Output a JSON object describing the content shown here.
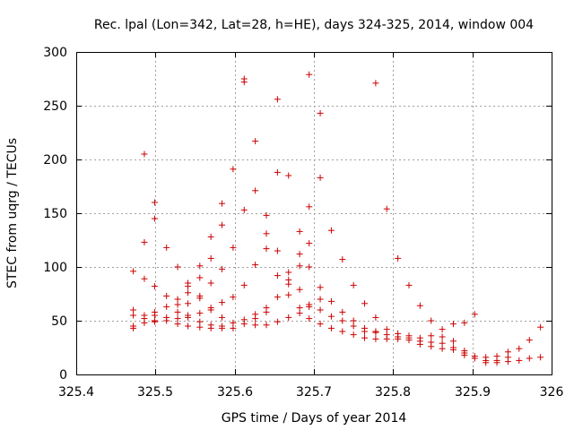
{
  "chart_data": {
    "type": "scatter",
    "title": "Rec. lpal (Lon=342, Lat=28, h=HE), days 324-325, 2014, window 004",
    "xlabel": "GPS time / Days of year 2014",
    "ylabel": "STEC from uqrg / TECUs",
    "xlim": [
      325.4,
      326
    ],
    "ylim": [
      0,
      300
    ],
    "xticks": [
      325.4,
      325.5,
      325.6,
      325.7,
      325.8,
      325.9,
      326
    ],
    "xtick_labels": [
      "325.4",
      "325.5",
      "325.6",
      "325.7",
      "325.8",
      "325.9",
      "326"
    ],
    "yticks": [
      0,
      50,
      100,
      150,
      200,
      250,
      300
    ],
    "ytick_labels": [
      "0",
      "50",
      "100",
      "150",
      "200",
      "250",
      "300"
    ],
    "grid": true,
    "marker": "+",
    "color": "#cc0000",
    "series": [
      {
        "name": "STEC",
        "points": [
          [
            325.472,
            96
          ],
          [
            325.472,
            60
          ],
          [
            325.472,
            55
          ],
          [
            325.472,
            45
          ],
          [
            325.472,
            43
          ],
          [
            325.486,
            205
          ],
          [
            325.486,
            123
          ],
          [
            325.486,
            89
          ],
          [
            325.486,
            55
          ],
          [
            325.486,
            52
          ],
          [
            325.486,
            48
          ],
          [
            325.499,
            160
          ],
          [
            325.499,
            145
          ],
          [
            325.499,
            82
          ],
          [
            325.499,
            58
          ],
          [
            325.499,
            55
          ],
          [
            325.499,
            50
          ],
          [
            325.499,
            49
          ],
          [
            325.514,
            118
          ],
          [
            325.514,
            73
          ],
          [
            325.514,
            63
          ],
          [
            325.514,
            53
          ],
          [
            325.514,
            50
          ],
          [
            325.528,
            100
          ],
          [
            325.528,
            70
          ],
          [
            325.528,
            65
          ],
          [
            325.528,
            58
          ],
          [
            325.528,
            52
          ],
          [
            325.528,
            47
          ],
          [
            325.541,
            85
          ],
          [
            325.541,
            82
          ],
          [
            325.541,
            76
          ],
          [
            325.541,
            66
          ],
          [
            325.541,
            55
          ],
          [
            325.541,
            53
          ],
          [
            325.541,
            45
          ],
          [
            325.556,
            101
          ],
          [
            325.556,
            90
          ],
          [
            325.556,
            73
          ],
          [
            325.556,
            71
          ],
          [
            325.556,
            57
          ],
          [
            325.556,
            49
          ],
          [
            325.556,
            44
          ],
          [
            325.57,
            128
          ],
          [
            325.57,
            108
          ],
          [
            325.57,
            85
          ],
          [
            325.57,
            62
          ],
          [
            325.57,
            60
          ],
          [
            325.57,
            46
          ],
          [
            325.57,
            43
          ],
          [
            325.584,
            159
          ],
          [
            325.584,
            139
          ],
          [
            325.584,
            98
          ],
          [
            325.584,
            67
          ],
          [
            325.584,
            53
          ],
          [
            325.584,
            45
          ],
          [
            325.584,
            43
          ],
          [
            325.598,
            191
          ],
          [
            325.598,
            118
          ],
          [
            325.598,
            72
          ],
          [
            325.598,
            48
          ],
          [
            325.598,
            43
          ],
          [
            325.612,
            275
          ],
          [
            325.612,
            272
          ],
          [
            325.612,
            153
          ],
          [
            325.612,
            83
          ],
          [
            325.612,
            51
          ],
          [
            325.612,
            47
          ],
          [
            325.626,
            217
          ],
          [
            325.626,
            171
          ],
          [
            325.626,
            102
          ],
          [
            325.626,
            56
          ],
          [
            325.626,
            52
          ],
          [
            325.626,
            46
          ],
          [
            325.64,
            148
          ],
          [
            325.64,
            131
          ],
          [
            325.64,
            117
          ],
          [
            325.64,
            62
          ],
          [
            325.64,
            58
          ],
          [
            325.64,
            46
          ],
          [
            325.654,
            256
          ],
          [
            325.654,
            188
          ],
          [
            325.654,
            115
          ],
          [
            325.654,
            92
          ],
          [
            325.654,
            72
          ],
          [
            325.654,
            49
          ],
          [
            325.668,
            185
          ],
          [
            325.668,
            95
          ],
          [
            325.668,
            88
          ],
          [
            325.668,
            84
          ],
          [
            325.668,
            74
          ],
          [
            325.668,
            53
          ],
          [
            325.682,
            133
          ],
          [
            325.682,
            112
          ],
          [
            325.682,
            101
          ],
          [
            325.682,
            79
          ],
          [
            325.682,
            62
          ],
          [
            325.682,
            57
          ],
          [
            325.694,
            279
          ],
          [
            325.694,
            156
          ],
          [
            325.694,
            122
          ],
          [
            325.694,
            100
          ],
          [
            325.694,
            65
          ],
          [
            325.694,
            63
          ],
          [
            325.694,
            52
          ],
          [
            325.708,
            243
          ],
          [
            325.708,
            183
          ],
          [
            325.708,
            81
          ],
          [
            325.708,
            70
          ],
          [
            325.708,
            60
          ],
          [
            325.708,
            47
          ],
          [
            325.722,
            134
          ],
          [
            325.722,
            68
          ],
          [
            325.722,
            54
          ],
          [
            325.722,
            43
          ],
          [
            325.736,
            107
          ],
          [
            325.736,
            58
          ],
          [
            325.736,
            50
          ],
          [
            325.736,
            40
          ],
          [
            325.75,
            83
          ],
          [
            325.75,
            50
          ],
          [
            325.75,
            45
          ],
          [
            325.75,
            37
          ],
          [
            325.764,
            66
          ],
          [
            325.764,
            43
          ],
          [
            325.764,
            40
          ],
          [
            325.764,
            34
          ],
          [
            325.778,
            271
          ],
          [
            325.778,
            53
          ],
          [
            325.778,
            40
          ],
          [
            325.778,
            39
          ],
          [
            325.778,
            33
          ],
          [
            325.792,
            154
          ],
          [
            325.792,
            42
          ],
          [
            325.792,
            37
          ],
          [
            325.792,
            33
          ],
          [
            325.806,
            108
          ],
          [
            325.806,
            38
          ],
          [
            325.806,
            35
          ],
          [
            325.806,
            33
          ],
          [
            325.82,
            83
          ],
          [
            325.82,
            36
          ],
          [
            325.82,
            34
          ],
          [
            325.82,
            32
          ],
          [
            325.834,
            64
          ],
          [
            325.834,
            34
          ],
          [
            325.834,
            31
          ],
          [
            325.834,
            28
          ],
          [
            325.848,
            50
          ],
          [
            325.848,
            36
          ],
          [
            325.848,
            30
          ],
          [
            325.848,
            26
          ],
          [
            325.862,
            42
          ],
          [
            325.862,
            35
          ],
          [
            325.862,
            29
          ],
          [
            325.862,
            24
          ],
          [
            325.876,
            47
          ],
          [
            325.876,
            31
          ],
          [
            325.876,
            25
          ],
          [
            325.876,
            23
          ],
          [
            325.89,
            48
          ],
          [
            325.89,
            22
          ],
          [
            325.89,
            20
          ],
          [
            325.89,
            18
          ],
          [
            325.903,
            56
          ],
          [
            325.903,
            17
          ],
          [
            325.903,
            15
          ],
          [
            325.917,
            16
          ],
          [
            325.917,
            13
          ],
          [
            325.917,
            11
          ],
          [
            325.931,
            17
          ],
          [
            325.931,
            13
          ],
          [
            325.931,
            11
          ],
          [
            325.945,
            21
          ],
          [
            325.945,
            16
          ],
          [
            325.945,
            12
          ],
          [
            325.959,
            24
          ],
          [
            325.959,
            13
          ],
          [
            325.972,
            32
          ],
          [
            325.972,
            15
          ],
          [
            325.986,
            44
          ],
          [
            325.986,
            16
          ]
        ]
      }
    ]
  }
}
